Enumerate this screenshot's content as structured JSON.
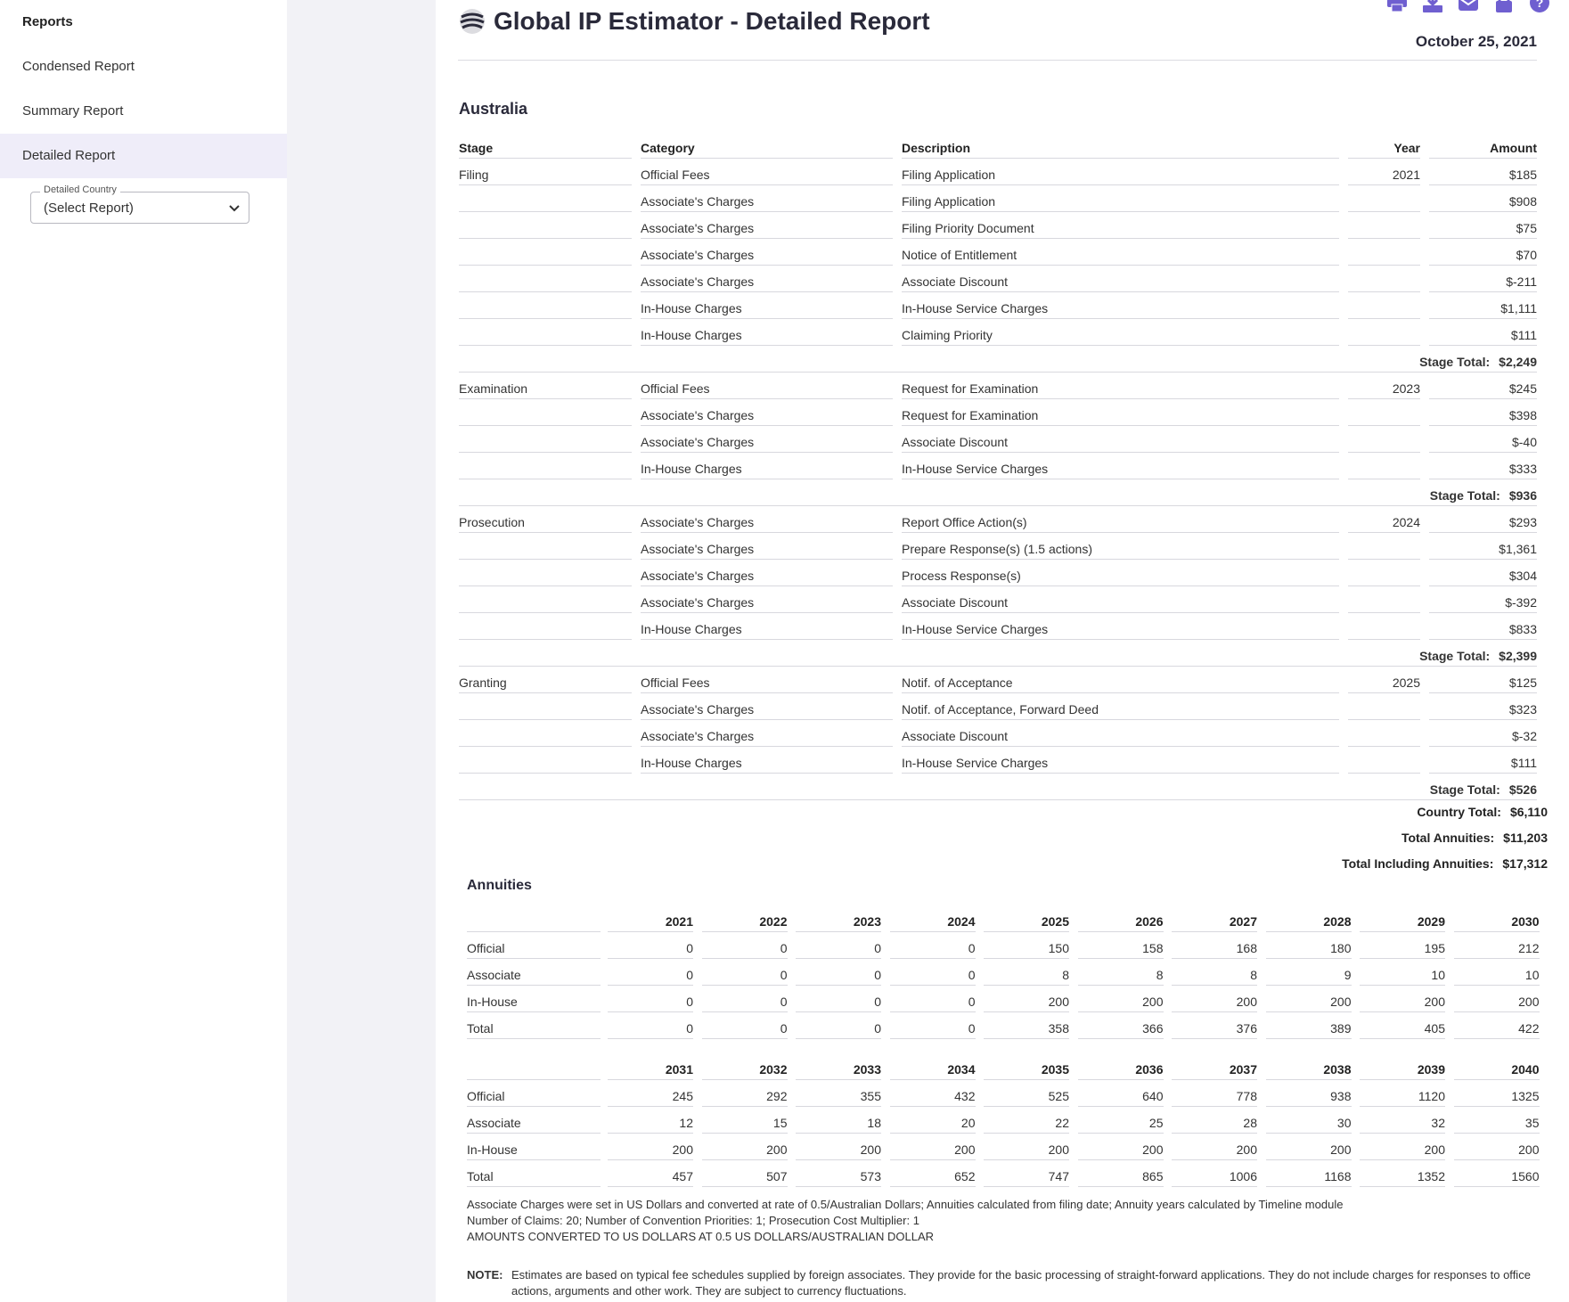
{
  "sidebar": {
    "heading": "Reports",
    "items": [
      "Condensed Report",
      "Summary Report",
      "Detailed Report"
    ],
    "select_label": "Detailed Country",
    "select_value": "(Select Report)"
  },
  "header": {
    "title": "Global IP Estimator - Detailed Report",
    "date": "October 25, 2021",
    "icons": [
      "print-icon",
      "download-icon",
      "email-icon",
      "lock-icon",
      "help-icon"
    ]
  },
  "report": {
    "country": "Australia",
    "columns": [
      "Stage",
      "Category",
      "Description",
      "Year",
      "Amount"
    ],
    "stage_total_label": "Stage Total:",
    "stages": [
      {
        "stage": "Filing",
        "total": "$2,249",
        "rows": [
          {
            "category": "Official Fees",
            "description": "Filing Application",
            "year": "2021",
            "amount": "$185"
          },
          {
            "category": "Associate's Charges",
            "description": "Filing Application",
            "year": "",
            "amount": "$908"
          },
          {
            "category": "Associate's Charges",
            "description": "Filing Priority Document",
            "year": "",
            "amount": "$75"
          },
          {
            "category": "Associate's Charges",
            "description": "Notice of Entitlement",
            "year": "",
            "amount": "$70"
          },
          {
            "category": "Associate's Charges",
            "description": "Associate Discount",
            "year": "",
            "amount": "$-211"
          },
          {
            "category": "In-House Charges",
            "description": "In-House Service Charges",
            "year": "",
            "amount": "$1,111"
          },
          {
            "category": "In-House Charges",
            "description": "Claiming Priority",
            "year": "",
            "amount": "$111"
          }
        ]
      },
      {
        "stage": "Examination",
        "total": "$936",
        "rows": [
          {
            "category": "Official Fees",
            "description": "Request for Examination",
            "year": "2023",
            "amount": "$245"
          },
          {
            "category": "Associate's Charges",
            "description": "Request for Examination",
            "year": "",
            "amount": "$398"
          },
          {
            "category": "Associate's Charges",
            "description": "Associate Discount",
            "year": "",
            "amount": "$-40"
          },
          {
            "category": "In-House Charges",
            "description": "In-House Service Charges",
            "year": "",
            "amount": "$333"
          }
        ]
      },
      {
        "stage": "Prosecution",
        "total": "$2,399",
        "rows": [
          {
            "category": "Associate's Charges",
            "description": "Report Office Action(s)",
            "year": "2024",
            "amount": "$293"
          },
          {
            "category": "Associate's Charges",
            "description": "Prepare Response(s) (1.5 actions)",
            "year": "",
            "amount": "$1,361"
          },
          {
            "category": "Associate's Charges",
            "description": "Process Response(s)",
            "year": "",
            "amount": "$304"
          },
          {
            "category": "Associate's Charges",
            "description": "Associate Discount",
            "year": "",
            "amount": "$-392"
          },
          {
            "category": "In-House Charges",
            "description": "In-House Service Charges",
            "year": "",
            "amount": "$833"
          }
        ]
      },
      {
        "stage": "Granting",
        "total": "$526",
        "rows": [
          {
            "category": "Official Fees",
            "description": "Notif. of Acceptance",
            "year": "2025",
            "amount": "$125"
          },
          {
            "category": "Associate's Charges",
            "description": "Notif. of Acceptance, Forward Deed",
            "year": "",
            "amount": "$323"
          },
          {
            "category": "Associate's Charges",
            "description": "Associate Discount",
            "year": "",
            "amount": "$-32"
          },
          {
            "category": "In-House Charges",
            "description": "In-House Service Charges",
            "year": "",
            "amount": "$111"
          }
        ]
      }
    ],
    "totals": [
      {
        "label": "Country Total:",
        "value": "$6,110"
      },
      {
        "label": "Total Annuities:",
        "value": "$11,203"
      },
      {
        "label": "Total Including Annuities:",
        "value": "$17,312"
      }
    ]
  },
  "annuities": {
    "title": "Annuities",
    "tables": [
      {
        "years": [
          "2021",
          "2022",
          "2023",
          "2024",
          "2025",
          "2026",
          "2027",
          "2028",
          "2029",
          "2030"
        ],
        "rows": [
          {
            "label": "Official",
            "values": [
              "0",
              "0",
              "0",
              "0",
              "150",
              "158",
              "168",
              "180",
              "195",
              "212"
            ]
          },
          {
            "label": "Associate",
            "values": [
              "0",
              "0",
              "0",
              "0",
              "8",
              "8",
              "8",
              "9",
              "10",
              "10"
            ]
          },
          {
            "label": "In-House",
            "values": [
              "0",
              "0",
              "0",
              "0",
              "200",
              "200",
              "200",
              "200",
              "200",
              "200"
            ]
          },
          {
            "label": "Total",
            "values": [
              "0",
              "0",
              "0",
              "0",
              "358",
              "366",
              "376",
              "389",
              "405",
              "422"
            ]
          }
        ]
      },
      {
        "years": [
          "2031",
          "2032",
          "2033",
          "2034",
          "2035",
          "2036",
          "2037",
          "2038",
          "2039",
          "2040"
        ],
        "rows": [
          {
            "label": "Official",
            "values": [
              "245",
              "292",
              "355",
              "432",
              "525",
              "640",
              "778",
              "938",
              "1120",
              "1325"
            ]
          },
          {
            "label": "Associate",
            "values": [
              "12",
              "15",
              "18",
              "20",
              "22",
              "25",
              "28",
              "30",
              "32",
              "35"
            ]
          },
          {
            "label": "In-House",
            "values": [
              "200",
              "200",
              "200",
              "200",
              "200",
              "200",
              "200",
              "200",
              "200",
              "200"
            ]
          },
          {
            "label": "Total",
            "values": [
              "457",
              "507",
              "573",
              "652",
              "747",
              "865",
              "1006",
              "1168",
              "1352",
              "1560"
            ]
          }
        ]
      }
    ]
  },
  "notes": [
    "Associate Charges were set in US Dollars and converted at rate of 0.5/Australian Dollars; Annuities calculated from filing date; Annuity years calculated by Timeline module",
    "Number of Claims: 20; Number of Convention Priorities: 1; Prosecution Cost Multiplier: 1",
    "AMOUNTS CONVERTED TO US DOLLARS AT 0.5 US DOLLARS/AUSTRALIAN DOLLAR"
  ],
  "note": {
    "label": "NOTE:",
    "text": "Estimates are based on typical fee schedules supplied by foreign associates. They provide for the basic processing of straight-forward applications. They do not include charges for responses to office actions, arguments and other work. They are subject to currency fluctuations."
  },
  "colors": {
    "accent": "#6f5fd0",
    "sidebar_active": "#efedf9",
    "background": "#f2f2f6"
  }
}
